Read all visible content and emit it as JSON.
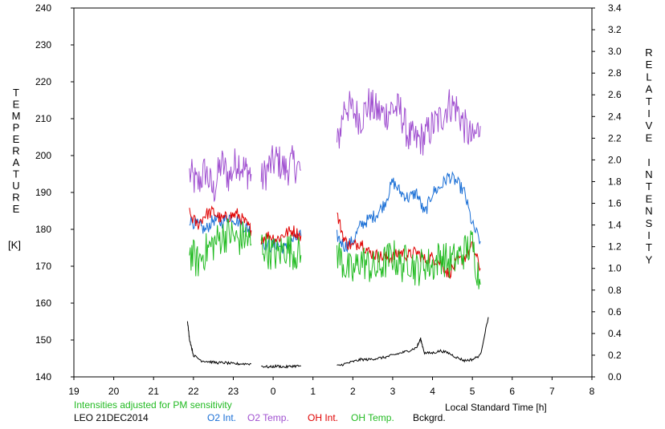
{
  "chart_data": {
    "type": "line",
    "left_axis": {
      "label_letters": [
        "T",
        "E",
        "M",
        "P",
        "E",
        "R",
        "A",
        "T",
        "U",
        "R",
        "E"
      ],
      "unit": "[K]",
      "range": [
        140,
        240
      ],
      "ticks": [
        "140",
        "150",
        "160",
        "170",
        "180",
        "190",
        "200",
        "210",
        "220",
        "230",
        "240"
      ]
    },
    "right_axis": {
      "label_letters": [
        "R",
        "E",
        "L",
        "A",
        "T",
        "I",
        "V",
        "E",
        "",
        "I",
        "N",
        "T",
        "E",
        "N",
        "S",
        "I",
        "T",
        "Y"
      ],
      "range": [
        0.0,
        3.4
      ],
      "ticks": [
        "0.0",
        "0.2",
        "0.4",
        "0.6",
        "0.8",
        "1.0",
        "1.2",
        "1.4",
        "1.6",
        "1.8",
        "2.0",
        "2.2",
        "2.4",
        "2.6",
        "2.8",
        "3.0",
        "3.2",
        "3.4"
      ]
    },
    "x_axis": {
      "label": "Local Standard Time [h]",
      "range": [
        19,
        32
      ],
      "ticks": [
        "19",
        "20",
        "21",
        "22",
        "23",
        "0",
        "1",
        "2",
        "3",
        "4",
        "5",
        "6",
        "7",
        "8"
      ]
    },
    "note": "Intensities adjusted for PM sensitivity",
    "station": "LEO 21DEC2014",
    "legend": [
      {
        "label": "O2 Int.",
        "color": "#1a6fd6"
      },
      {
        "label": "O2 Temp.",
        "color": "#a050d0"
      },
      {
        "label": "OH Int.",
        "color": "#e00000"
      },
      {
        "label": "OH Temp.",
        "color": "#22bb22"
      },
      {
        "label": "Bckgrd.",
        "color": "#000000"
      }
    ],
    "series": [
      {
        "name": "O2 Temp.",
        "axis": "left",
        "color": "#a050d0",
        "segments": [
          {
            "x": [
              21.9,
              22.1,
              22.3,
              22.5,
              22.7,
              22.9,
              23.1,
              23.3,
              23.45
            ],
            "y": [
              195,
              192,
              196,
              190,
              198,
              194,
              199,
              196,
              195
            ]
          },
          {
            "x": [
              23.7,
              23.9,
              24.1,
              24.3,
              24.5,
              24.7
            ],
            "y": [
              193,
              197,
              199,
              196,
              198,
              196
            ]
          },
          {
            "x": [
              25.6,
              25.8,
              26.0,
              26.2,
              26.4,
              26.6,
              26.8,
              27.0,
              27.2,
              27.4,
              27.6,
              27.8,
              28.0,
              28.2,
              28.4,
              28.6,
              28.8,
              29.0,
              29.2
            ],
            "y": [
              202,
              214,
              212,
              210,
              214,
              212,
              211,
              213,
              212,
              205,
              204,
              205,
              208,
              210,
              214,
              213,
              208,
              204,
              208
            ]
          }
        ]
      },
      {
        "name": "O2 Int.",
        "axis": "right",
        "color": "#1a6fd6",
        "segments": [
          {
            "x": [
              21.9,
              22.1,
              22.3,
              22.5,
              22.7,
              22.9,
              23.1,
              23.3,
              23.45
            ],
            "y": [
              1.45,
              1.4,
              1.35,
              1.45,
              1.42,
              1.48,
              1.44,
              1.38,
              1.35
            ]
          },
          {
            "x": [
              23.7,
              23.9,
              24.1,
              24.3,
              24.5,
              24.7
            ],
            "y": [
              1.25,
              1.2,
              1.22,
              1.18,
              1.26,
              1.3
            ]
          },
          {
            "x": [
              25.6,
              25.8,
              26.0,
              26.2,
              26.4,
              26.6,
              26.8,
              27.0,
              27.2,
              27.4,
              27.6,
              27.8,
              28.0,
              28.2,
              28.4,
              28.6,
              28.8,
              29.0,
              29.2
            ],
            "y": [
              1.3,
              1.2,
              1.25,
              1.4,
              1.45,
              1.5,
              1.6,
              1.8,
              1.7,
              1.65,
              1.7,
              1.5,
              1.7,
              1.75,
              1.85,
              1.8,
              1.7,
              1.4,
              1.25
            ]
          }
        ]
      },
      {
        "name": "OH Int.",
        "axis": "right",
        "color": "#e00000",
        "segments": [
          {
            "x": [
              21.9,
              22.1,
              22.3,
              22.5,
              22.7,
              22.9,
              23.1,
              23.3,
              23.45
            ],
            "y": [
              1.5,
              1.4,
              1.5,
              1.52,
              1.45,
              1.48,
              1.5,
              1.42,
              1.35
            ]
          },
          {
            "x": [
              23.7,
              23.9,
              24.1,
              24.3,
              24.5,
              24.7
            ],
            "y": [
              1.28,
              1.3,
              1.27,
              1.32,
              1.35,
              1.3
            ]
          },
          {
            "x": [
              25.6,
              25.8,
              26.0,
              26.2,
              26.4,
              26.6,
              26.8,
              27.0,
              27.2,
              27.4,
              27.6,
              27.8,
              28.0,
              28.2,
              28.4,
              28.6,
              28.8,
              29.0,
              29.2
            ],
            "y": [
              1.5,
              1.25,
              1.2,
              1.25,
              1.15,
              1.12,
              1.1,
              1.1,
              1.15,
              1.12,
              1.15,
              1.08,
              1.1,
              1.05,
              0.95,
              1.05,
              1.1,
              1.2,
              1.0
            ]
          }
        ]
      },
      {
        "name": "OH Temp.",
        "axis": "left",
        "color": "#22bb22",
        "segments": [
          {
            "x": [
              21.9,
              22.1,
              22.3,
              22.5,
              22.7,
              22.9,
              23.1,
              23.3,
              23.45
            ],
            "y": [
              174,
              171,
              174,
              176,
              178,
              179,
              177,
              178,
              176
            ]
          },
          {
            "x": [
              23.7,
              23.9,
              24.1,
              24.3,
              24.5,
              24.7
            ],
            "y": [
              176,
              174,
              173,
              175,
              174,
              173
            ]
          },
          {
            "x": [
              25.6,
              25.8,
              26.0,
              26.2,
              26.4,
              26.6,
              26.8,
              27.0,
              27.2,
              27.4,
              27.6,
              27.8,
              28.0,
              28.2,
              28.4,
              28.6,
              28.8,
              29.0,
              29.2
            ],
            "y": [
              174,
              170,
              168,
              172,
              170,
              169,
              171,
              173,
              170,
              172,
              169,
              171,
              170,
              173,
              171,
              172,
              174,
              176,
              165
            ]
          }
        ]
      },
      {
        "name": "Bckgrd.",
        "axis": "right",
        "color": "#000000",
        "segments": [
          {
            "x": [
              21.85,
              21.9,
              22.0,
              22.2,
              22.4,
              22.6,
              22.8,
              23.0,
              23.2,
              23.45
            ],
            "y": [
              0.52,
              0.35,
              0.2,
              0.15,
              0.14,
              0.13,
              0.13,
              0.12,
              0.12,
              0.12
            ]
          },
          {
            "x": [
              23.7,
              23.9,
              24.1,
              24.3,
              24.5,
              24.7
            ],
            "y": [
              0.1,
              0.09,
              0.1,
              0.09,
              0.1,
              0.1
            ]
          },
          {
            "x": [
              25.6,
              25.8,
              26.0,
              26.2,
              26.4,
              26.6,
              26.8,
              27.0,
              27.2,
              27.4,
              27.6,
              27.7,
              27.8,
              28.0,
              28.2,
              28.4,
              28.6,
              28.8,
              29.0,
              29.2,
              29.4
            ],
            "y": [
              0.1,
              0.12,
              0.14,
              0.16,
              0.16,
              0.17,
              0.18,
              0.2,
              0.22,
              0.24,
              0.27,
              0.35,
              0.22,
              0.22,
              0.24,
              0.22,
              0.18,
              0.15,
              0.16,
              0.2,
              0.55
            ]
          }
        ]
      }
    ]
  }
}
